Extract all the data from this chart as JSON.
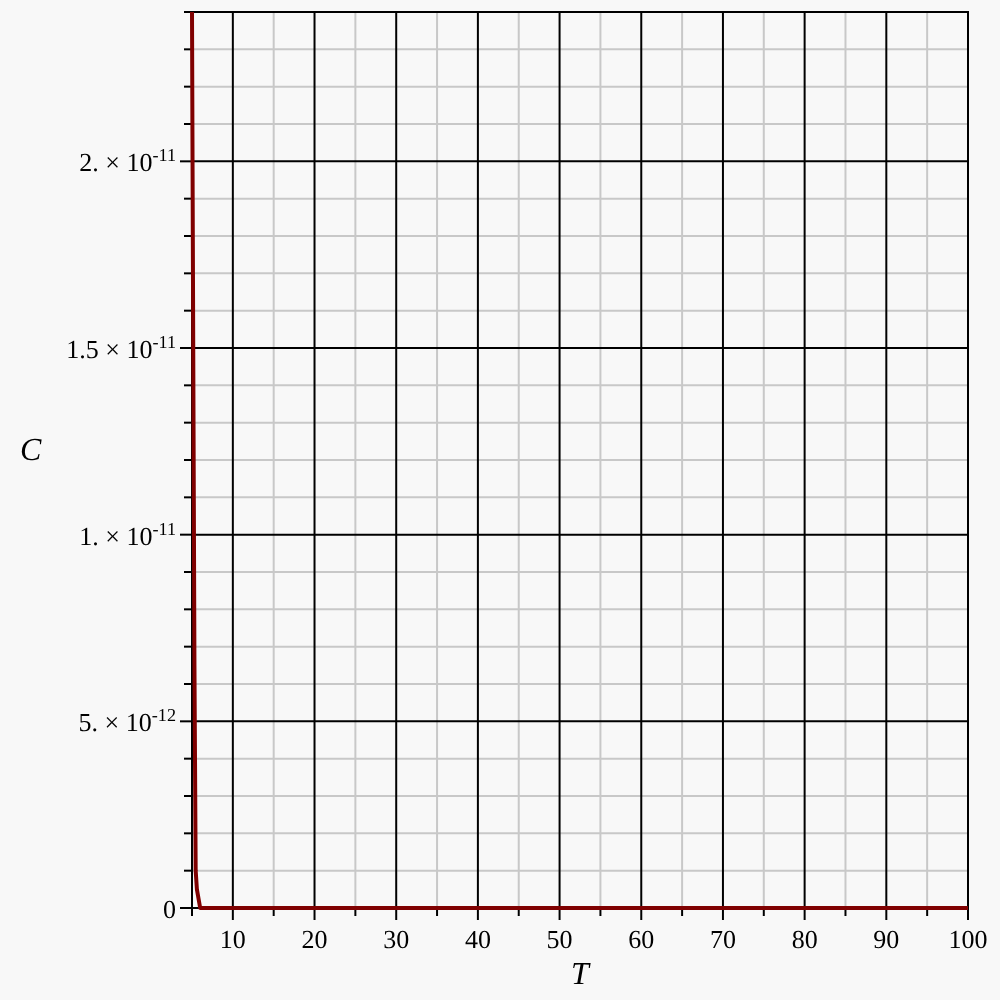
{
  "chart_data": {
    "type": "line",
    "xlabel": "T",
    "ylabel": "C",
    "x": [
      5,
      5.1,
      5.3,
      5.45,
      5.6,
      6,
      10,
      20,
      40,
      60,
      80,
      100
    ],
    "series": [
      {
        "color": "#7f0000",
        "values": [
          2.4e-11,
          1.8e-11,
          6.5e-12,
          1e-12,
          5e-13,
          0,
          0,
          0,
          0,
          0,
          0,
          0
        ]
      }
    ],
    "xlim": [
      5,
      100
    ],
    "ylim": [
      0,
      2.4e-11
    ],
    "xticks": [
      10,
      20,
      30,
      40,
      50,
      60,
      70,
      80,
      90,
      100
    ],
    "yticks": [
      {
        "value": 0,
        "label": "0"
      },
      {
        "value": 5e-12,
        "label": "5. × 10$^{-12}$"
      },
      {
        "value": 1e-11,
        "label": "1. × 10$^{-11}$"
      },
      {
        "value": 1.5e-11,
        "label": "1.5 × 10$^{-11}$"
      },
      {
        "value": 2e-11,
        "label": "2. × 10$^{-11}$"
      }
    ],
    "grid": true,
    "marker": "none",
    "line_style": "solid"
  }
}
